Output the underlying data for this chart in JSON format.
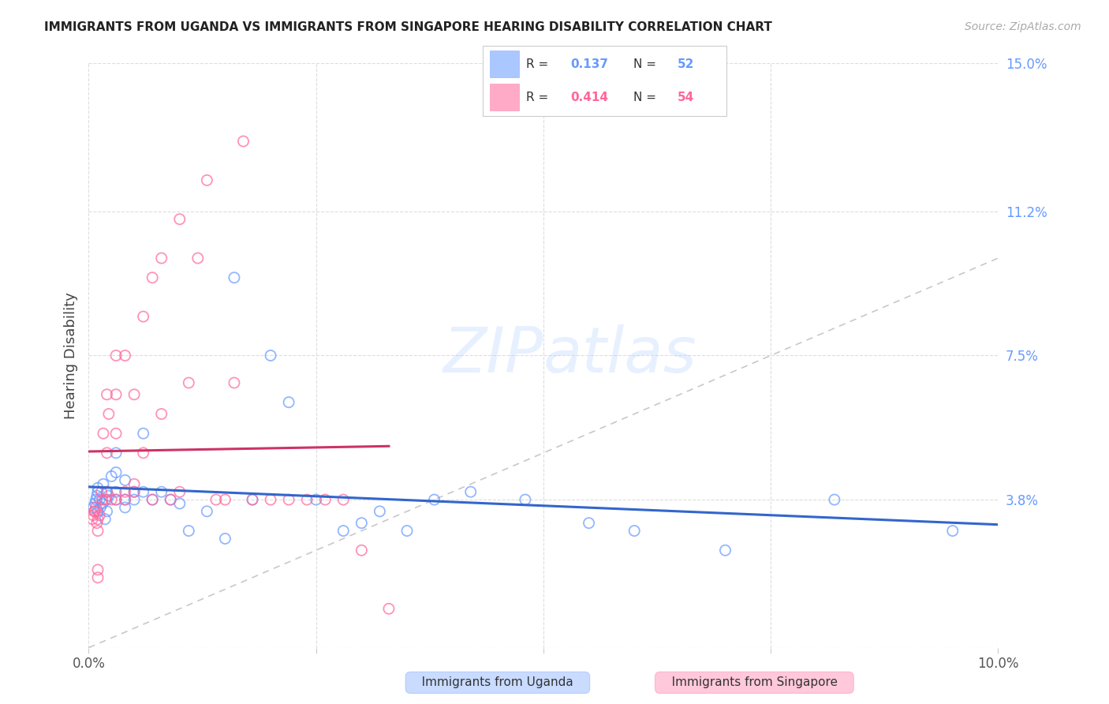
{
  "title": "IMMIGRANTS FROM UGANDA VS IMMIGRANTS FROM SINGAPORE HEARING DISABILITY CORRELATION CHART",
  "source": "Source: ZipAtlas.com",
  "ylabel": "Hearing Disability",
  "xlim": [
    0.0,
    0.1
  ],
  "ylim": [
    0.0,
    0.15
  ],
  "xticks": [
    0.0,
    0.025,
    0.05,
    0.075,
    0.1
  ],
  "xticklabels": [
    "0.0%",
    "",
    "",
    "",
    "10.0%"
  ],
  "yticks_right": [
    0.0,
    0.038,
    0.075,
    0.112,
    0.15
  ],
  "yticklabels_right": [
    "",
    "3.8%",
    "7.5%",
    "11.2%",
    "15.0%"
  ],
  "grid_color": "#dddddd",
  "background_color": "#ffffff",
  "blue_color": "#6699ff",
  "pink_color": "#ff6699",
  "blue_dark": "#3366cc",
  "pink_dark": "#cc3366",
  "diag_line_color": "#bbbbbb",
  "uganda_x": [
    0.0005,
    0.0007,
    0.0008,
    0.0009,
    0.001,
    0.001,
    0.001,
    0.0012,
    0.0013,
    0.0015,
    0.0016,
    0.0018,
    0.002,
    0.002,
    0.002,
    0.0022,
    0.0025,
    0.003,
    0.003,
    0.003,
    0.003,
    0.004,
    0.004,
    0.004,
    0.005,
    0.005,
    0.006,
    0.006,
    0.007,
    0.008,
    0.009,
    0.01,
    0.011,
    0.013,
    0.015,
    0.016,
    0.018,
    0.02,
    0.022,
    0.025,
    0.028,
    0.03,
    0.032,
    0.035,
    0.038,
    0.042,
    0.048,
    0.055,
    0.06,
    0.07,
    0.082,
    0.095
  ],
  "uganda_y": [
    0.036,
    0.037,
    0.038,
    0.039,
    0.04,
    0.041,
    0.035,
    0.038,
    0.036,
    0.037,
    0.042,
    0.033,
    0.038,
    0.04,
    0.035,
    0.039,
    0.044,
    0.038,
    0.04,
    0.045,
    0.05,
    0.036,
    0.038,
    0.043,
    0.04,
    0.038,
    0.04,
    0.055,
    0.038,
    0.04,
    0.038,
    0.037,
    0.03,
    0.035,
    0.028,
    0.095,
    0.038,
    0.075,
    0.063,
    0.038,
    0.03,
    0.032,
    0.035,
    0.03,
    0.038,
    0.04,
    0.038,
    0.032,
    0.03,
    0.025,
    0.038,
    0.03
  ],
  "singapore_x": [
    0.0004,
    0.0005,
    0.0006,
    0.0007,
    0.0008,
    0.0009,
    0.001,
    0.001,
    0.001,
    0.001,
    0.0012,
    0.0014,
    0.0015,
    0.0016,
    0.0018,
    0.002,
    0.002,
    0.002,
    0.0022,
    0.0025,
    0.003,
    0.003,
    0.003,
    0.003,
    0.004,
    0.004,
    0.004,
    0.005,
    0.005,
    0.005,
    0.006,
    0.006,
    0.007,
    0.007,
    0.008,
    0.008,
    0.009,
    0.01,
    0.01,
    0.011,
    0.012,
    0.013,
    0.014,
    0.015,
    0.016,
    0.017,
    0.018,
    0.02,
    0.022,
    0.024,
    0.026,
    0.028,
    0.03,
    0.033
  ],
  "singapore_y": [
    0.033,
    0.034,
    0.035,
    0.035,
    0.036,
    0.032,
    0.03,
    0.02,
    0.018,
    0.033,
    0.034,
    0.04,
    0.038,
    0.055,
    0.038,
    0.05,
    0.065,
    0.04,
    0.06,
    0.038,
    0.065,
    0.075,
    0.055,
    0.038,
    0.04,
    0.075,
    0.038,
    0.04,
    0.042,
    0.065,
    0.05,
    0.085,
    0.038,
    0.095,
    0.06,
    0.1,
    0.038,
    0.04,
    0.11,
    0.068,
    0.1,
    0.12,
    0.038,
    0.038,
    0.068,
    0.13,
    0.038,
    0.038,
    0.038,
    0.038,
    0.038,
    0.038,
    0.025,
    0.01
  ]
}
